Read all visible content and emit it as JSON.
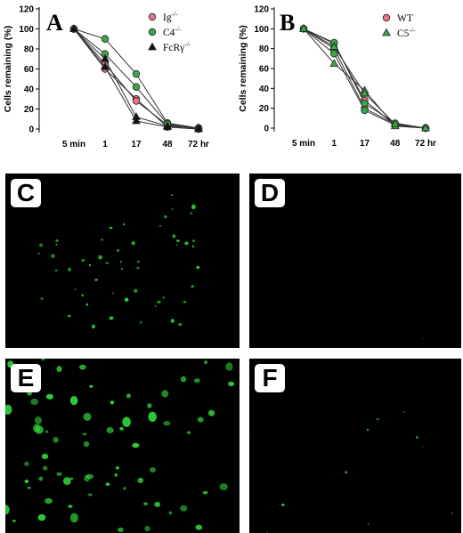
{
  "figure": {
    "panels": [
      {
        "letter": "C"
      },
      {
        "letter": "D"
      },
      {
        "letter": "E"
      },
      {
        "letter": "F"
      }
    ],
    "fluorescence_color": "#2fd23a"
  },
  "chart_data": [
    {
      "panel_letter": "A",
      "type": "line",
      "ylabel": "Cells remaining (%)",
      "xlabel": "",
      "categories": [
        "5 min",
        "1",
        "17",
        "48",
        "72 hr"
      ],
      "yticks": [
        0,
        20,
        40,
        60,
        80,
        100,
        120
      ],
      "ylim": [
        0,
        120
      ],
      "legend_position": "top-right",
      "legend": [
        {
          "label": "Ig",
          "sup": "-/-",
          "marker": "circle",
          "color": "#e8748a"
        },
        {
          "label": "C4",
          "sup": "-/-",
          "marker": "circle",
          "color": "#3aa846"
        },
        {
          "label": "FcRγ",
          "sup": "-/-",
          "marker": "triangle",
          "color": "#111111"
        }
      ],
      "series": [
        {
          "marker": "circle",
          "color": "#e8748a",
          "values": [
            100,
            60,
            30,
            2,
            0
          ]
        },
        {
          "marker": "circle",
          "color": "#e8748a",
          "values": [
            100,
            65,
            28,
            4,
            1
          ]
        },
        {
          "marker": "circle",
          "color": "#3aa846",
          "values": [
            100,
            90,
            55,
            6,
            1
          ]
        },
        {
          "marker": "circle",
          "color": "#3aa846",
          "values": [
            100,
            75,
            42,
            5,
            0
          ]
        },
        {
          "marker": "triangle",
          "color": "#111111",
          "values": [
            100,
            70,
            12,
            3,
            1
          ]
        },
        {
          "marker": "triangle",
          "color": "#111111",
          "values": [
            100,
            62,
            8,
            2,
            0
          ]
        }
      ]
    },
    {
      "panel_letter": "B",
      "type": "line",
      "ylabel": "Cells remaining (%)",
      "xlabel": "",
      "categories": [
        "5 min",
        "1",
        "17",
        "48",
        "72 hr"
      ],
      "yticks": [
        0,
        20,
        40,
        60,
        80,
        100,
        120
      ],
      "ylim": [
        0,
        120
      ],
      "legend_position": "top-right",
      "legend": [
        {
          "label": "WT",
          "sup": "",
          "marker": "circle",
          "color": "#e8748a"
        },
        {
          "label": "C5",
          "sup": "-/-",
          "marker": "triangle",
          "color": "#3aa846"
        }
      ],
      "series": [
        {
          "marker": "circle",
          "color": "#e8748a",
          "values": [
            100,
            85,
            28,
            3,
            0
          ]
        },
        {
          "marker": "circle",
          "color": "#e8748a",
          "values": [
            100,
            80,
            20,
            4,
            0
          ]
        },
        {
          "marker": "circle",
          "color": "#3aa846",
          "values": [
            100,
            75,
            18,
            3,
            0
          ]
        },
        {
          "marker": "circle",
          "color": "#3aa846",
          "values": [
            100,
            86,
            25,
            5,
            0
          ]
        },
        {
          "marker": "triangle",
          "color": "#3aa846",
          "values": [
            100,
            65,
            38,
            2,
            0
          ]
        },
        {
          "marker": "triangle",
          "color": "#3aa846",
          "values": [
            100,
            82,
            35,
            4,
            0
          ]
        }
      ]
    }
  ]
}
